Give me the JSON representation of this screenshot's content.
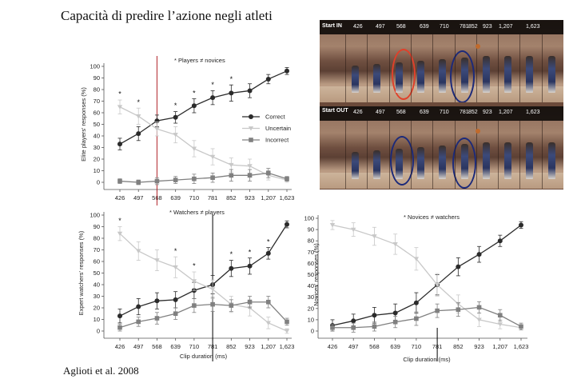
{
  "slide": {
    "title": "Capacità di predire l’azione negli atleti",
    "citation": "Aglioti et al. 2008"
  },
  "colors": {
    "correct": "#2b2b2b",
    "uncertain": "#c8c8c8",
    "incorrect": "#808080",
    "red_marker": "#b3262b",
    "black_marker": "#000000",
    "ring_red": "#e0402a",
    "ring_blue": "#1c2a7a"
  },
  "photo": {
    "row_labels": [
      "Start IN",
      "Start OUT"
    ],
    "frame_labels": [
      "426",
      "497",
      "568",
      "639",
      "710",
      "781",
      "852",
      "923",
      "1,207",
      "1,623"
    ]
  },
  "chart_data": [
    {
      "type": "line",
      "panel": "top-left",
      "annotation": "* Players ≠ novices",
      "ylabel": "Elite players' responses (%)",
      "xlabel": "",
      "categories": [
        "426",
        "497",
        "568",
        "639",
        "710",
        "781",
        "852",
        "923",
        "1,207",
        "1,623"
      ],
      "yticks": [
        "0",
        "10",
        "20",
        "30",
        "40",
        "50",
        "60",
        "70",
        "80",
        "90",
        "100"
      ],
      "ylim": [
        0,
        100
      ],
      "legend": {
        "position": "right",
        "entries": [
          "Correct",
          "Uncertain",
          "Incorrect"
        ]
      },
      "series": [
        {
          "name": "Correct",
          "values": [
            33,
            42,
            53,
            56,
            66,
            73,
            77,
            79,
            89,
            96
          ],
          "errors": [
            5,
            6,
            5,
            5,
            6,
            6,
            7,
            6,
            4,
            3
          ]
        },
        {
          "name": "Uncertain",
          "values": [
            65,
            57,
            46,
            41,
            29,
            22,
            15,
            14,
            6,
            2
          ],
          "errors": [
            6,
            7,
            6,
            7,
            7,
            7,
            6,
            6,
            4,
            2
          ]
        },
        {
          "name": "Incorrect",
          "values": [
            1,
            0,
            1,
            2,
            3,
            4,
            6,
            6,
            8,
            3
          ],
          "errors": [
            2,
            2,
            3,
            3,
            4,
            4,
            5,
            5,
            4,
            2
          ]
        }
      ],
      "marker_line_at": "568",
      "significance": [
        "426",
        "497",
        "639",
        "710",
        "781",
        "852"
      ]
    },
    {
      "type": "line",
      "panel": "bottom-left",
      "annotation": "* Watchers ≠ players",
      "ylabel": "Expert watchers' responses (%)",
      "xlabel": "Clip duration (ms)",
      "categories": [
        "426",
        "497",
        "568",
        "639",
        "710",
        "781",
        "852",
        "923",
        "1,207",
        "1,623"
      ],
      "yticks": [
        "0",
        "10",
        "20",
        "30",
        "40",
        "50",
        "60",
        "70",
        "80",
        "90",
        "100"
      ],
      "ylim": [
        0,
        100
      ],
      "series": [
        {
          "name": "Correct",
          "values": [
            13,
            21,
            26,
            27,
            35,
            40,
            54,
            56,
            67,
            92
          ],
          "errors": [
            6,
            7,
            7,
            7,
            7,
            8,
            7,
            7,
            5,
            3
          ]
        },
        {
          "name": "Uncertain",
          "values": [
            84,
            69,
            61,
            55,
            43,
            36,
            23,
            20,
            7,
            0
          ],
          "errors": [
            6,
            8,
            9,
            9,
            8,
            8,
            7,
            7,
            5,
            2
          ]
        },
        {
          "name": "Incorrect",
          "values": [
            3,
            8,
            11,
            15,
            22,
            23,
            22,
            25,
            25,
            8
          ],
          "errors": [
            3,
            4,
            5,
            5,
            6,
            6,
            5,
            5,
            5,
            3
          ]
        }
      ],
      "marker_line_at": "781",
      "significance": [
        "426",
        "639",
        "710",
        "852",
        "923",
        "1,207"
      ]
    },
    {
      "type": "line",
      "panel": "bottom-right",
      "annotation": "* Novices ≠ watchers",
      "ylabel": "Novices' responses (%)",
      "xlabel": "Clip duration (ms)",
      "categories": [
        "426",
        "497",
        "568",
        "639",
        "710",
        "781",
        "852",
        "923",
        "1,207",
        "1,623"
      ],
      "yticks": [
        "0",
        "10",
        "20",
        "30",
        "40",
        "50",
        "60",
        "70",
        "80",
        "90",
        "100"
      ],
      "ylim": [
        0,
        100
      ],
      "series": [
        {
          "name": "Correct",
          "values": [
            5,
            9,
            14,
            16,
            25,
            41,
            57,
            68,
            80,
            94
          ],
          "errors": [
            5,
            6,
            7,
            8,
            9,
            9,
            8,
            7,
            5,
            3
          ]
        },
        {
          "name": "Uncertain",
          "values": [
            94,
            90,
            84,
            77,
            64,
            41,
            24,
            10,
            6,
            3
          ],
          "errors": [
            4,
            6,
            8,
            9,
            10,
            10,
            8,
            6,
            4,
            2
          ]
        },
        {
          "name": "Incorrect",
          "values": [
            3,
            3,
            4,
            8,
            11,
            18,
            19,
            21,
            14,
            4
          ],
          "errors": [
            3,
            4,
            4,
            5,
            6,
            6,
            6,
            5,
            5,
            3
          ]
        }
      ],
      "marker_line_at": "781",
      "significance": []
    }
  ]
}
